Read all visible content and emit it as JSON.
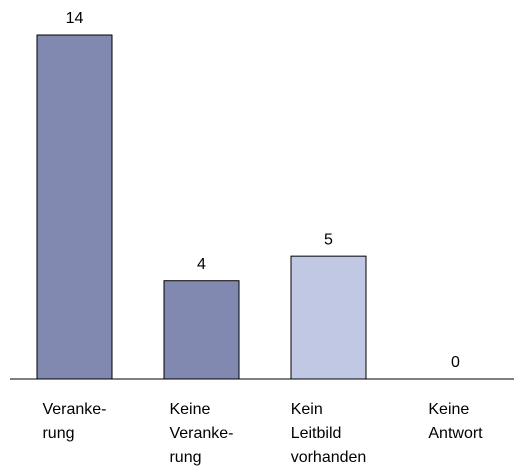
{
  "chart_data": {
    "type": "bar",
    "categories": [
      [
        "Veranke-",
        "rung"
      ],
      [
        "Keine",
        "Veranke-",
        "rung"
      ],
      [
        "Kein",
        "Leitbild",
        "vorhanden"
      ],
      [
        "Keine",
        "Antwort"
      ]
    ],
    "values": [
      14,
      4,
      5,
      0
    ],
    "colors": [
      "#8189b1",
      "#8189b1",
      "#c1c8e4",
      "#8189b1"
    ]
  }
}
